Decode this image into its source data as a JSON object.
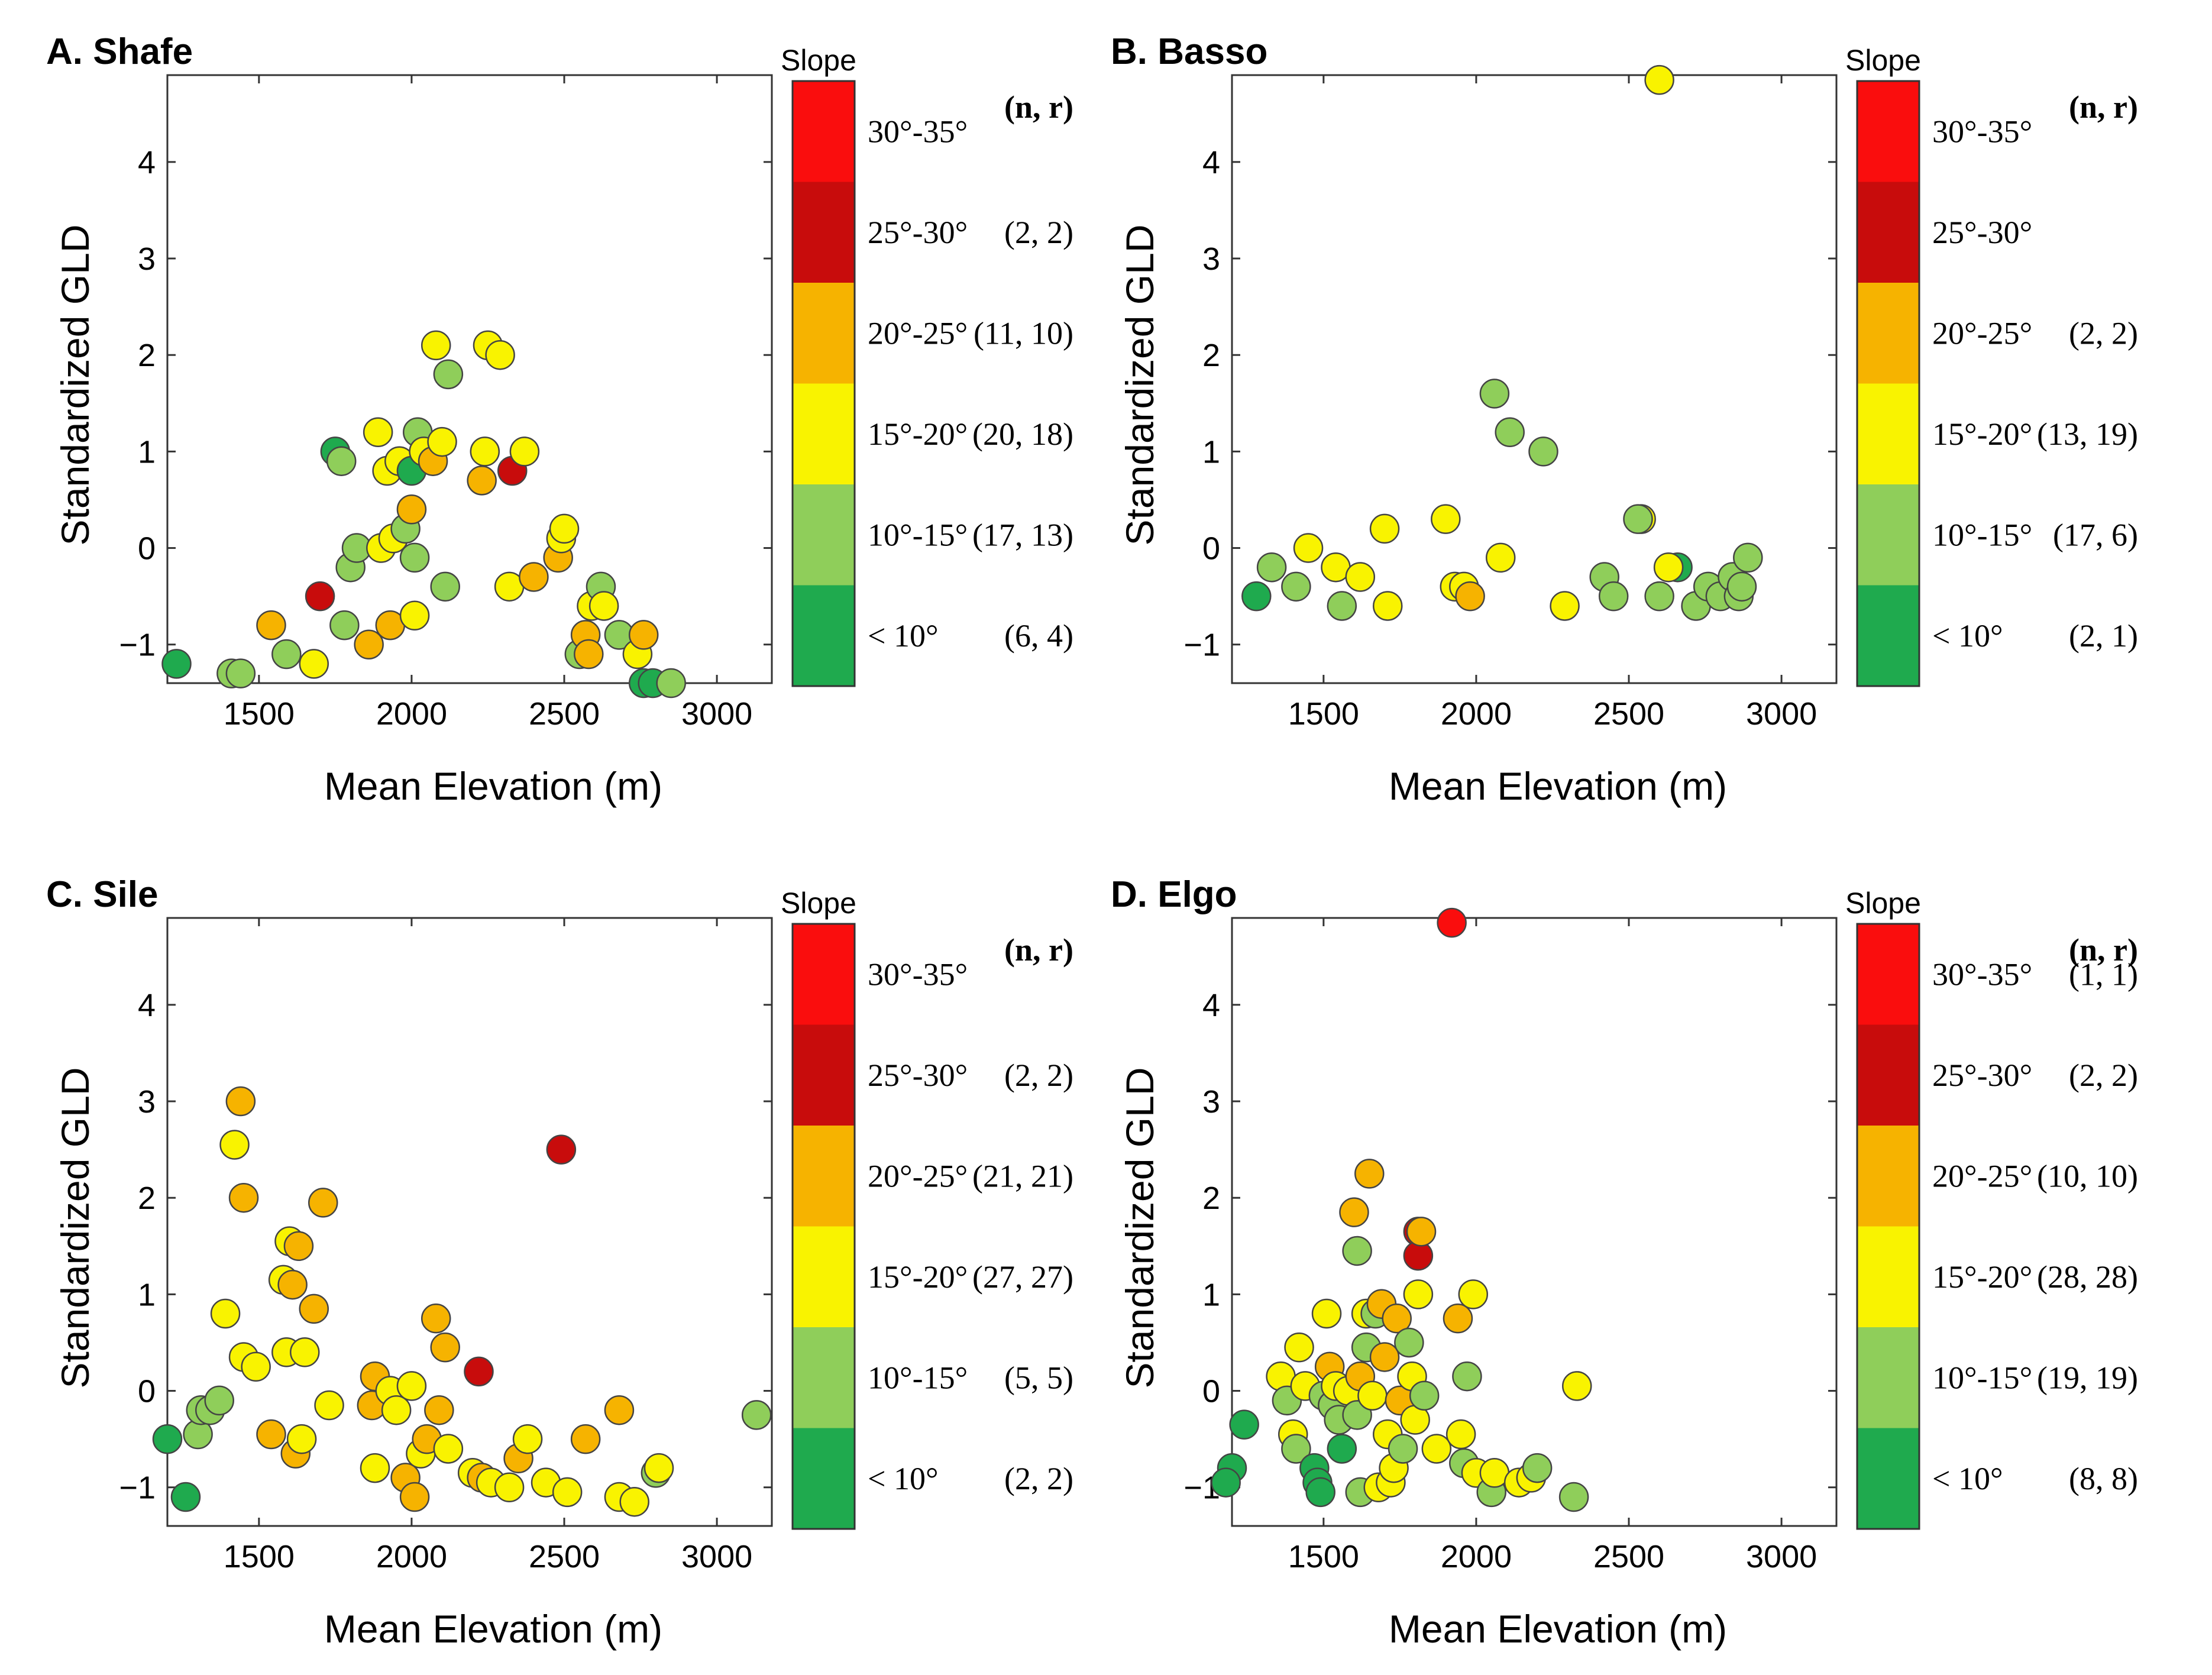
{
  "colors": {
    "lt10": "#1faa4e",
    "s10_15": "#8fce5a",
    "s15_20": "#f9f300",
    "s20_25": "#f6b300",
    "s25_30": "#c80c0c",
    "s30_35": "#fa0d0d"
  },
  "legend": {
    "title": "Slope",
    "nr_header": "(n, r)",
    "bins": [
      {
        "key": "s30_35",
        "label": "30°-35°"
      },
      {
        "key": "s25_30",
        "label": "25°-30°"
      },
      {
        "key": "s20_25",
        "label": "20°-25°"
      },
      {
        "key": "s15_20",
        "label": "15°-20°"
      },
      {
        "key": "s10_15",
        "label": "10°-15°"
      },
      {
        "key": "lt10",
        "label": "< 10°"
      }
    ]
  },
  "chart_data": [
    {
      "type": "scatter",
      "panel_letter": "A.",
      "title": "Shafe",
      "xlabel": "Mean Elevation (m)",
      "ylabel": "Standardized GLD",
      "xlim": [
        1200,
        3180
      ],
      "ylim": [
        -1.4,
        4.9
      ],
      "xticks": [
        1500,
        2000,
        2500,
        3000
      ],
      "yticks": [
        -1,
        0,
        1,
        2,
        3,
        4
      ],
      "nr": {
        "s30_35": "",
        "s25_30": "(2, 2)",
        "s20_25": "(11, 10)",
        "s15_20": "(20, 18)",
        "s10_15": "(17, 13)",
        "lt10": "(6, 4)"
      },
      "points": [
        [
          1230,
          -1.2,
          "lt10"
        ],
        [
          1410,
          -1.3,
          "s10_15"
        ],
        [
          1440,
          -1.3,
          "s10_15"
        ],
        [
          1540,
          -0.8,
          "s20_25"
        ],
        [
          1590,
          -1.1,
          "s10_15"
        ],
        [
          1680,
          -1.2,
          "s15_20"
        ],
        [
          1700,
          -0.5,
          "s25_30"
        ],
        [
          1750,
          1.0,
          "lt10"
        ],
        [
          1770,
          0.9,
          "s10_15"
        ],
        [
          1780,
          -0.8,
          "s10_15"
        ],
        [
          1800,
          -0.2,
          "s10_15"
        ],
        [
          1820,
          0.0,
          "s10_15"
        ],
        [
          1860,
          -1.0,
          "s20_25"
        ],
        [
          1890,
          1.2,
          "s15_20"
        ],
        [
          1900,
          0.0,
          "s15_20"
        ],
        [
          1920,
          0.8,
          "s15_20"
        ],
        [
          1930,
          -0.8,
          "s20_25"
        ],
        [
          1940,
          0.1,
          "s15_20"
        ],
        [
          1960,
          0.9,
          "s15_20"
        ],
        [
          1980,
          0.2,
          "s10_15"
        ],
        [
          2000,
          0.4,
          "s20_25"
        ],
        [
          2000,
          0.8,
          "lt10"
        ],
        [
          2010,
          -0.1,
          "s10_15"
        ],
        [
          2010,
          -0.7,
          "s15_20"
        ],
        [
          2020,
          1.2,
          "s10_15"
        ],
        [
          2040,
          1.0,
          "s15_20"
        ],
        [
          2070,
          0.9,
          "s20_25"
        ],
        [
          2080,
          2.1,
          "s15_20"
        ],
        [
          2100,
          1.1,
          "s15_20"
        ],
        [
          2110,
          -0.4,
          "s10_15"
        ],
        [
          2120,
          1.8,
          "s10_15"
        ],
        [
          2230,
          0.7,
          "s20_25"
        ],
        [
          2240,
          1.0,
          "s15_20"
        ],
        [
          2250,
          2.1,
          "s15_20"
        ],
        [
          2290,
          2.0,
          "s15_20"
        ],
        [
          2320,
          -0.4,
          "s15_20"
        ],
        [
          2330,
          0.8,
          "s25_30"
        ],
        [
          2370,
          1.0,
          "s15_20"
        ],
        [
          2400,
          -0.3,
          "s20_25"
        ],
        [
          2480,
          -0.1,
          "s20_25"
        ],
        [
          2490,
          0.1,
          "s15_20"
        ],
        [
          2500,
          0.2,
          "s15_20"
        ],
        [
          2550,
          -1.1,
          "s10_15"
        ],
        [
          2570,
          -0.9,
          "s20_25"
        ],
        [
          2580,
          -1.1,
          "s20_25"
        ],
        [
          2590,
          -0.6,
          "s15_20"
        ],
        [
          2620,
          -0.4,
          "s10_15"
        ],
        [
          2630,
          -0.6,
          "s15_20"
        ],
        [
          2680,
          -0.9,
          "s10_15"
        ],
        [
          2740,
          -1.1,
          "s15_20"
        ],
        [
          2760,
          -0.9,
          "s20_25"
        ],
        [
          2760,
          -1.4,
          "lt10"
        ],
        [
          2790,
          -1.4,
          "lt10"
        ],
        [
          2850,
          -1.4,
          "s10_15"
        ]
      ]
    },
    {
      "type": "scatter",
      "panel_letter": "B.",
      "title": "Basso",
      "xlabel": "Mean Elevation (m)",
      "ylabel": "Standardized GLD",
      "xlim": [
        1200,
        3180
      ],
      "ylim": [
        -1.4,
        4.9
      ],
      "xticks": [
        1500,
        2000,
        2500,
        3000
      ],
      "yticks": [
        -1,
        0,
        1,
        2,
        3,
        4
      ],
      "nr": {
        "s30_35": "",
        "s25_30": "",
        "s20_25": "(2, 2)",
        "s15_20": "(13, 19)",
        "s10_15": "(17, 6)",
        "lt10": "(2, 1)"
      },
      "points": [
        [
          1280,
          -0.5,
          "lt10"
        ],
        [
          1330,
          -0.2,
          "s10_15"
        ],
        [
          1410,
          -0.4,
          "s10_15"
        ],
        [
          1450,
          0.0,
          "s15_20"
        ],
        [
          1540,
          -0.2,
          "s15_20"
        ],
        [
          1560,
          -0.6,
          "s10_15"
        ],
        [
          1620,
          -0.3,
          "s15_20"
        ],
        [
          1700,
          0.2,
          "s15_20"
        ],
        [
          1710,
          -0.6,
          "s15_20"
        ],
        [
          1900,
          0.3,
          "s15_20"
        ],
        [
          1930,
          -0.4,
          "s15_20"
        ],
        [
          1960,
          -0.4,
          "s15_20"
        ],
        [
          1980,
          -0.5,
          "s20_25"
        ],
        [
          2060,
          1.6,
          "s10_15"
        ],
        [
          2080,
          -0.1,
          "s15_20"
        ],
        [
          2110,
          1.2,
          "s10_15"
        ],
        [
          2220,
          1.0,
          "s10_15"
        ],
        [
          2290,
          -0.6,
          "s15_20"
        ],
        [
          2420,
          -0.3,
          "s10_15"
        ],
        [
          2450,
          -0.5,
          "s10_15"
        ],
        [
          2540,
          0.3,
          "s15_20"
        ],
        [
          2530,
          0.3,
          "s10_15"
        ],
        [
          2600,
          4.85,
          "s15_20"
        ],
        [
          2600,
          -0.5,
          "s10_15"
        ],
        [
          2660,
          -0.2,
          "lt10"
        ],
        [
          2630,
          -0.2,
          "s15_20"
        ],
        [
          2720,
          -0.6,
          "s10_15"
        ],
        [
          2760,
          -0.4,
          "s10_15"
        ],
        [
          2800,
          -0.5,
          "s10_15"
        ],
        [
          2840,
          -0.3,
          "s10_15"
        ],
        [
          2860,
          -0.5,
          "s10_15"
        ],
        [
          2870,
          -0.4,
          "s10_15"
        ],
        [
          2890,
          -0.1,
          "s10_15"
        ]
      ]
    },
    {
      "type": "scatter",
      "panel_letter": "C.",
      "title": "Sile",
      "xlabel": "Mean Elevation (m)",
      "ylabel": "Standardized GLD",
      "xlim": [
        1200,
        3180
      ],
      "ylim": [
        -1.4,
        4.9
      ],
      "xticks": [
        1500,
        2000,
        2500,
        3000
      ],
      "yticks": [
        -1,
        0,
        1,
        2,
        3,
        4
      ],
      "nr": {
        "s30_35": "",
        "s25_30": "(2, 2)",
        "s20_25": "(21, 21)",
        "s15_20": "(27, 27)",
        "s10_15": "(5, 5)",
        "lt10": "(2, 2)"
      },
      "points": [
        [
          1200,
          -0.5,
          "lt10"
        ],
        [
          1260,
          -1.1,
          "lt10"
        ],
        [
          1300,
          -0.45,
          "s10_15"
        ],
        [
          1310,
          -0.2,
          "s10_15"
        ],
        [
          1340,
          -0.2,
          "s10_15"
        ],
        [
          1370,
          -0.1,
          "s10_15"
        ],
        [
          1390,
          0.8,
          "s15_20"
        ],
        [
          1420,
          2.55,
          "s15_20"
        ],
        [
          1440,
          3.0,
          "s20_25"
        ],
        [
          1450,
          2.0,
          "s20_25"
        ],
        [
          1450,
          0.35,
          "s15_20"
        ],
        [
          1490,
          0.25,
          "s15_20"
        ],
        [
          1540,
          -0.45,
          "s20_25"
        ],
        [
          1580,
          1.15,
          "s15_20"
        ],
        [
          1590,
          0.4,
          "s15_20"
        ],
        [
          1600,
          1.55,
          "s15_20"
        ],
        [
          1610,
          1.1,
          "s20_25"
        ],
        [
          1620,
          -0.65,
          "s20_25"
        ],
        [
          1630,
          1.5,
          "s20_25"
        ],
        [
          1640,
          -0.5,
          "s15_20"
        ],
        [
          1650,
          0.4,
          "s15_20"
        ],
        [
          1680,
          0.85,
          "s20_25"
        ],
        [
          1710,
          1.95,
          "s20_25"
        ],
        [
          1730,
          -0.15,
          "s15_20"
        ],
        [
          1870,
          -0.15,
          "s20_25"
        ],
        [
          1880,
          0.15,
          "s20_25"
        ],
        [
          1880,
          -0.8,
          "s15_20"
        ],
        [
          1930,
          0.0,
          "s15_20"
        ],
        [
          1950,
          -0.2,
          "s15_20"
        ],
        [
          1980,
          -0.9,
          "s20_25"
        ],
        [
          2000,
          0.05,
          "s15_20"
        ],
        [
          2010,
          -1.1,
          "s20_25"
        ],
        [
          2030,
          -0.65,
          "s15_20"
        ],
        [
          2050,
          -0.5,
          "s20_25"
        ],
        [
          2080,
          0.75,
          "s20_25"
        ],
        [
          2090,
          -0.2,
          "s20_25"
        ],
        [
          2110,
          0.45,
          "s20_25"
        ],
        [
          2120,
          -0.6,
          "s15_20"
        ],
        [
          2200,
          -0.85,
          "s15_20"
        ],
        [
          2220,
          0.2,
          "s25_30"
        ],
        [
          2230,
          -0.9,
          "s20_25"
        ],
        [
          2260,
          -0.95,
          "s15_20"
        ],
        [
          2320,
          -1.0,
          "s15_20"
        ],
        [
          2350,
          -0.7,
          "s20_25"
        ],
        [
          2380,
          -0.5,
          "s15_20"
        ],
        [
          2440,
          -0.95,
          "s15_20"
        ],
        [
          2490,
          2.5,
          "s25_30"
        ],
        [
          2510,
          -1.05,
          "s15_20"
        ],
        [
          2570,
          -0.5,
          "s20_25"
        ],
        [
          2680,
          -0.2,
          "s20_25"
        ],
        [
          2680,
          -1.1,
          "s15_20"
        ],
        [
          2730,
          -1.15,
          "s15_20"
        ],
        [
          2800,
          -0.85,
          "s10_15"
        ],
        [
          2810,
          -0.8,
          "s15_20"
        ],
        [
          3130,
          -0.25,
          "s10_15"
        ]
      ]
    },
    {
      "type": "scatter",
      "panel_letter": "D.",
      "title": "Elgo",
      "xlabel": "Mean Elevation (m)",
      "ylabel": "Standardized GLD",
      "xlim": [
        1200,
        3180
      ],
      "ylim": [
        -1.4,
        4.9
      ],
      "xticks": [
        1500,
        2000,
        2500,
        3000
      ],
      "yticks": [
        -1,
        0,
        1,
        2,
        3,
        4
      ],
      "nr": {
        "s30_35": "(1, 1)",
        "s25_30": "(2, 2)",
        "s20_25": "(10, 10)",
        "s15_20": "(28, 28)",
        "s10_15": "(19, 19)",
        "lt10": "(8, 8)"
      },
      "points": [
        [
          1200,
          -0.8,
          "lt10"
        ],
        [
          1180,
          -0.95,
          "lt10"
        ],
        [
          1240,
          -0.35,
          "lt10"
        ],
        [
          1360,
          0.15,
          "s15_20"
        ],
        [
          1380,
          -0.1,
          "s10_15"
        ],
        [
          1400,
          -0.45,
          "s15_20"
        ],
        [
          1410,
          -0.6,
          "s10_15"
        ],
        [
          1420,
          0.45,
          "s15_20"
        ],
        [
          1440,
          0.05,
          "s15_20"
        ],
        [
          1470,
          -0.8,
          "lt10"
        ],
        [
          1480,
          -0.95,
          "lt10"
        ],
        [
          1490,
          -1.05,
          "lt10"
        ],
        [
          1500,
          -0.05,
          "s10_15"
        ],
        [
          1510,
          0.8,
          "s15_20"
        ],
        [
          1520,
          0.25,
          "s20_25"
        ],
        [
          1530,
          -0.15,
          "s10_15"
        ],
        [
          1540,
          0.05,
          "s15_20"
        ],
        [
          1550,
          -0.3,
          "s10_15"
        ],
        [
          1560,
          -0.6,
          "lt10"
        ],
        [
          1580,
          0.0,
          "s15_20"
        ],
        [
          1600,
          1.85,
          "s20_25"
        ],
        [
          1610,
          1.45,
          "s10_15"
        ],
        [
          1610,
          -0.25,
          "s10_15"
        ],
        [
          1620,
          -1.05,
          "s10_15"
        ],
        [
          1620,
          0.15,
          "s20_25"
        ],
        [
          1640,
          0.8,
          "s15_20"
        ],
        [
          1640,
          0.45,
          "s10_15"
        ],
        [
          1650,
          2.25,
          "s20_25"
        ],
        [
          1660,
          -0.05,
          "s15_20"
        ],
        [
          1670,
          0.8,
          "s10_15"
        ],
        [
          1680,
          -1.0,
          "s15_20"
        ],
        [
          1690,
          0.9,
          "s20_25"
        ],
        [
          1700,
          0.35,
          "s20_25"
        ],
        [
          1710,
          -0.45,
          "s15_20"
        ],
        [
          1720,
          -0.95,
          "s15_20"
        ],
        [
          1730,
          -0.8,
          "s15_20"
        ],
        [
          1740,
          0.75,
          "s20_25"
        ],
        [
          1750,
          -0.1,
          "s20_25"
        ],
        [
          1760,
          -0.6,
          "s10_15"
        ],
        [
          1780,
          0.5,
          "s10_15"
        ],
        [
          1790,
          0.15,
          "s15_20"
        ],
        [
          1800,
          -0.3,
          "s15_20"
        ],
        [
          1810,
          1.0,
          "s15_20"
        ],
        [
          1810,
          1.65,
          "s25_30"
        ],
        [
          1810,
          1.4,
          "s25_30"
        ],
        [
          1820,
          1.65,
          "s20_25"
        ],
        [
          1830,
          -0.05,
          "s10_15"
        ],
        [
          1870,
          -0.6,
          "s15_20"
        ],
        [
          1920,
          4.85,
          "s30_35"
        ],
        [
          1940,
          0.75,
          "s20_25"
        ],
        [
          1950,
          -0.45,
          "s15_20"
        ],
        [
          1960,
          -0.75,
          "s10_15"
        ],
        [
          1970,
          0.15,
          "s10_15"
        ],
        [
          1990,
          1.0,
          "s15_20"
        ],
        [
          2000,
          -0.85,
          "s15_20"
        ],
        [
          2050,
          -1.05,
          "s10_15"
        ],
        [
          2060,
          -0.85,
          "s15_20"
        ],
        [
          2140,
          -0.95,
          "s15_20"
        ],
        [
          2180,
          -0.9,
          "s15_20"
        ],
        [
          2200,
          -0.8,
          "s10_15"
        ],
        [
          2320,
          -1.1,
          "s10_15"
        ],
        [
          2330,
          0.05,
          "s15_20"
        ]
      ]
    }
  ]
}
